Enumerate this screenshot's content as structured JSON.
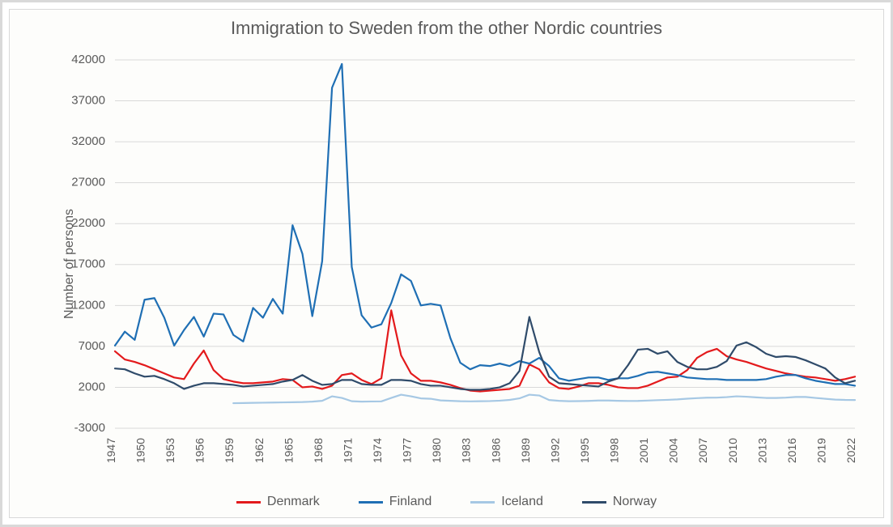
{
  "chart": {
    "type": "line",
    "title": "Immigration to Sweden from the other Nordic countries",
    "title_fontsize": 22,
    "ylabel": "Number of persons",
    "label_fontsize": 16,
    "background_color": "#fdfdfb",
    "frame_border_color": "#d9d9d9",
    "grid_color": "#d9d9d9",
    "text_color": "#5a5a5a",
    "ylim": [
      -3000,
      42000
    ],
    "ytick_step": 5000,
    "yticks": [
      -3000,
      2000,
      7000,
      12000,
      17000,
      22000,
      27000,
      32000,
      37000,
      42000
    ],
    "x_years": [
      1947,
      1948,
      1949,
      1950,
      1951,
      1952,
      1953,
      1954,
      1955,
      1956,
      1957,
      1958,
      1959,
      1960,
      1961,
      1962,
      1963,
      1964,
      1965,
      1966,
      1967,
      1968,
      1969,
      1970,
      1971,
      1972,
      1973,
      1974,
      1975,
      1976,
      1977,
      1978,
      1979,
      1980,
      1981,
      1982,
      1983,
      1984,
      1985,
      1986,
      1987,
      1988,
      1989,
      1990,
      1991,
      1992,
      1993,
      1994,
      1995,
      1996,
      1997,
      1998,
      1999,
      2000,
      2001,
      2002,
      2003,
      2004,
      2005,
      2006,
      2007,
      2008,
      2009,
      2010,
      2011,
      2012,
      2013,
      2014,
      2015,
      2016,
      2017,
      2018,
      2019,
      2020,
      2021,
      2022
    ],
    "xtick_step": 3,
    "xticks": [
      1947,
      1950,
      1953,
      1956,
      1959,
      1962,
      1965,
      1968,
      1971,
      1974,
      1977,
      1980,
      1983,
      1986,
      1989,
      1992,
      1995,
      1998,
      2001,
      2004,
      2007,
      2010,
      2013,
      2016,
      2019,
      2022
    ],
    "line_width": 2.2,
    "series": [
      {
        "name": "Denmark",
        "color": "#e31a1c",
        "values": [
          6400,
          5400,
          5100,
          4700,
          4200,
          3700,
          3200,
          3000,
          4900,
          6500,
          4100,
          3000,
          2700,
          2500,
          2500,
          2600,
          2700,
          3000,
          2900,
          2000,
          2100,
          1800,
          2200,
          3500,
          3700,
          2900,
          2400,
          3100,
          11400,
          5900,
          3700,
          2800,
          2800,
          2600,
          2300,
          1900,
          1600,
          1500,
          1600,
          1700,
          1800,
          2200,
          4800,
          4200,
          2600,
          1900,
          1800,
          2100,
          2500,
          2500,
          2300,
          2000,
          1900,
          1900,
          2200,
          2700,
          3200,
          3300,
          4100,
          5600,
          6300,
          6700,
          5800,
          5400,
          5100,
          4700,
          4300,
          4000,
          3700,
          3500,
          3300,
          3200,
          3000,
          2800,
          3000,
          3300
        ]
      },
      {
        "name": "Finland",
        "color": "#1f6fb4",
        "values": [
          7100,
          8800,
          7800,
          12700,
          12900,
          10500,
          7100,
          9000,
          10600,
          8200,
          11000,
          10900,
          8400,
          7600,
          11700,
          10500,
          12800,
          11000,
          21800,
          18300,
          10700,
          17400,
          38600,
          41500,
          16700,
          10800,
          9300,
          9700,
          12300,
          15800,
          15000,
          12000,
          12200,
          12000,
          8000,
          5000,
          4200,
          4700,
          4600,
          4900,
          4600,
          5200,
          4900,
          5600,
          4600,
          3100,
          2800,
          3000,
          3200,
          3200,
          2900,
          3100,
          3100,
          3400,
          3800,
          3900,
          3700,
          3500,
          3200,
          3100,
          3000,
          3000,
          2900,
          2900,
          2900,
          2900,
          3000,
          3300,
          3500,
          3500,
          3100,
          2800,
          2600,
          2400,
          2400,
          2200
        ]
      },
      {
        "name": "Iceland",
        "color": "#a6c8e4",
        "values": [
          null,
          null,
          null,
          null,
          null,
          null,
          null,
          null,
          null,
          null,
          null,
          null,
          60,
          80,
          100,
          120,
          140,
          160,
          180,
          200,
          250,
          350,
          900,
          700,
          300,
          250,
          270,
          280,
          700,
          1100,
          900,
          650,
          600,
          400,
          350,
          300,
          280,
          300,
          320,
          370,
          460,
          650,
          1100,
          1000,
          450,
          350,
          300,
          310,
          340,
          390,
          390,
          350,
          330,
          340,
          380,
          430,
          470,
          520,
          610,
          680,
          730,
          740,
          800,
          900,
          850,
          770,
          700,
          700,
          740,
          820,
          820,
          700,
          600,
          500,
          460,
          450
        ]
      },
      {
        "name": "Norway",
        "color": "#2f4b6a",
        "values": [
          4300,
          4200,
          3700,
          3300,
          3400,
          3000,
          2500,
          1800,
          2200,
          2500,
          2500,
          2400,
          2300,
          2100,
          2200,
          2300,
          2400,
          2700,
          2900,
          3500,
          2800,
          2300,
          2400,
          2900,
          2900,
          2400,
          2300,
          2300,
          2900,
          2900,
          2800,
          2400,
          2200,
          2200,
          2000,
          1800,
          1700,
          1700,
          1800,
          2000,
          2500,
          4000,
          10600,
          6300,
          3300,
          2500,
          2400,
          2300,
          2200,
          2100,
          2700,
          3100,
          4700,
          6600,
          6700,
          6100,
          6400,
          5100,
          4500,
          4200,
          4200,
          4500,
          5200,
          7100,
          7500,
          6900,
          6100,
          5700,
          5800,
          5700,
          5300,
          4800,
          4300,
          3200,
          2500,
          2800
        ]
      }
    ],
    "legend": {
      "position": "bottom-center",
      "items": [
        "Denmark",
        "Finland",
        "Iceland",
        "Norway"
      ]
    }
  }
}
